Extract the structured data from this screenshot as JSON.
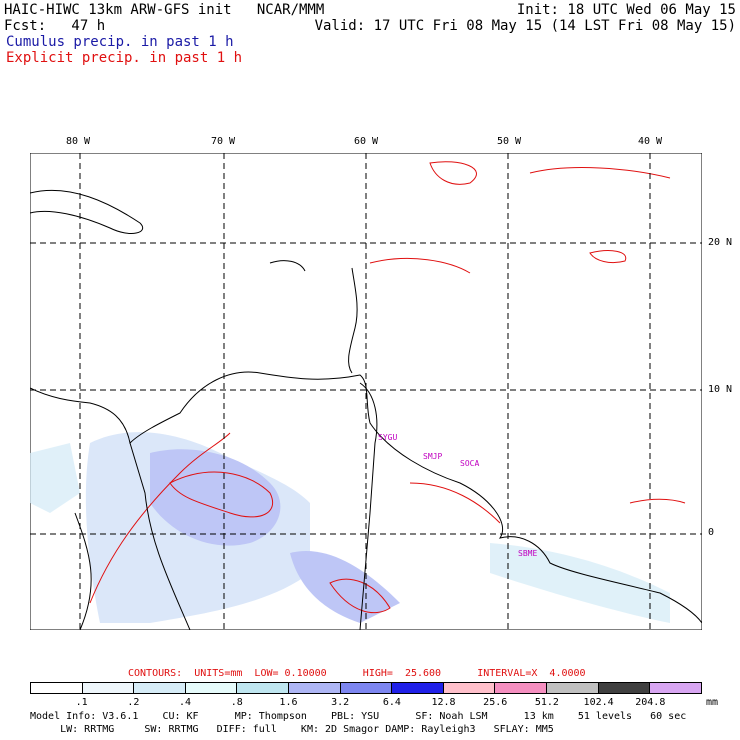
{
  "header": {
    "title": "HAIC-HIWC 13km ARW-GFS init   NCAR/MMM",
    "fcst": "Fcst:   47 h",
    "init": "Init: 18 UTC Wed 06 May 15",
    "valid": "Valid: 17 UTC Fri 08 May 15 (14 LST Fri 08 May 15)",
    "cumulus_label": "Cumulus precip. in past 1 h",
    "explicit_label": "Explicit precip. in past 1 h"
  },
  "map": {
    "lon_labels": [
      "80 W",
      "70 W",
      "60 W",
      "50 W",
      "40 W"
    ],
    "lat_labels": [
      "20 N",
      "10 N",
      "0"
    ],
    "station_labels": [
      "SYGU",
      "SMJP",
      "SOCA",
      "SBME"
    ],
    "colors": {
      "coast": "#000000",
      "grid": "#000000",
      "explicit": "#e01010",
      "cumulus": "#6e7bf0",
      "station": "#c000c0"
    }
  },
  "colorbar": {
    "contours": "CONTOURS:  UNITS=mm  LOW= 0.10000      HIGH=  25.600      INTERVAL=X  4.0000",
    "levels": [
      ".1",
      ".2",
      ".4",
      ".8",
      "1.6",
      "3.2",
      "6.4",
      "12.8",
      "25.6",
      "51.2",
      "102.4",
      "204.8"
    ],
    "units": "mm",
    "colors": [
      "#ffffff",
      "#eef6fb",
      "#d6ecf7",
      "#e6fbfb",
      "#bfe6f0",
      "#aeb6f5",
      "#7d86f0",
      "#2020e8",
      "#ffc0cb",
      "#f58fc0",
      "#c0c0c0",
      "#404040",
      "#d8a6f2"
    ]
  },
  "footer": {
    "line1": "Model Info: V3.6.1    CU: KF      MP: Thompson    PBL: YSU      SF: Noah LSM      13 km    51 levels   60 sec",
    "line2": "     LW: RRTMG     SW: RRTMG   DIFF: full    KM: 2D Smagor DAMP: Rayleigh3   SFLAY: MM5"
  }
}
